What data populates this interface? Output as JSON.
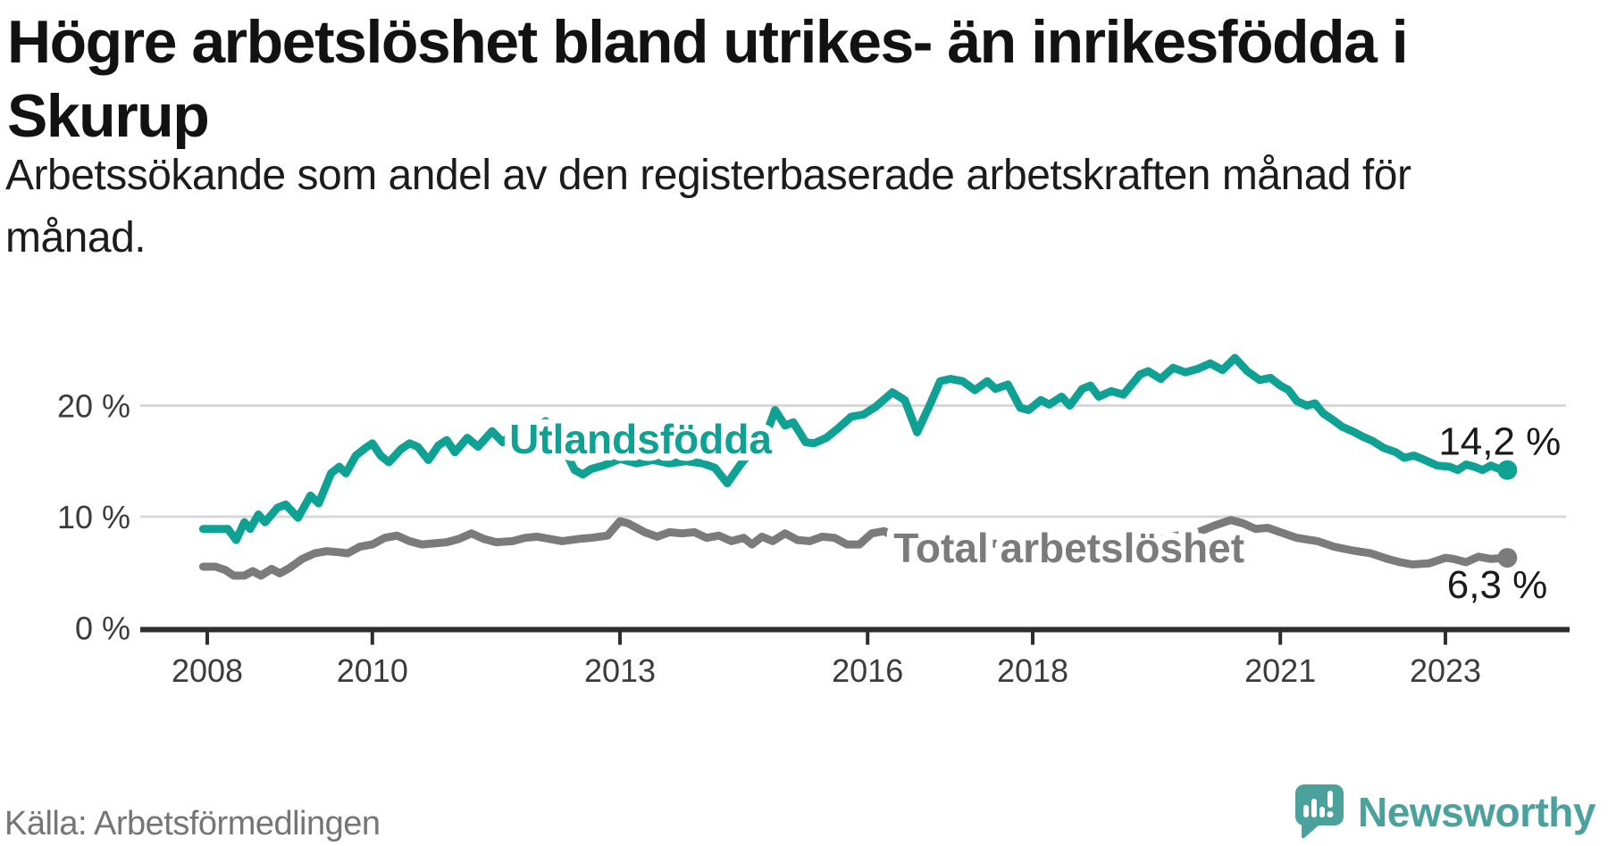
{
  "header": {
    "title_lines": [
      "Högre arbetslöshet bland utrikes- än inrikesfödda i",
      "Skurup"
    ],
    "subtitle": "Arbetssökande som andel av den registerbaserade arbetskraften månad för månad."
  },
  "footer": {
    "source": "Källa: Arbetsförmedlingen",
    "brand": "Newsworthy"
  },
  "colors": {
    "accent_teal": "#0fa294",
    "line_gray": "#7b7b7b",
    "brand_teal": "#4ba19b",
    "text_dark": "#121212",
    "tick_text": "#3c3c3c",
    "gridline": "#d8d8d8",
    "axis": "#2e2e2e",
    "source_text": "#757575"
  },
  "chart_data": {
    "type": "line",
    "title": "Högre arbetslöshet bland utrikes- än inrikesfödda i Skurup",
    "subtitle": "Arbetssökande som andel av den registerbaserade arbetskraften månad för månad.",
    "xlabel": "",
    "ylabel": "",
    "grid": true,
    "legend_position": "on-line-labels",
    "x_axis": {
      "ticks": [
        2008,
        2010,
        2013,
        2016,
        2018,
        2021,
        2023
      ],
      "range": [
        2007.5,
        2024.5
      ]
    },
    "y_axis": {
      "ticks": [
        {
          "value": 20,
          "label": "20 %"
        },
        {
          "value": 10,
          "label": "10 %"
        },
        {
          "value": 0,
          "label": "0 %"
        }
      ],
      "range": [
        0,
        26
      ]
    },
    "series": [
      {
        "name": "Utlandsfödda",
        "color": "#0fa294",
        "end_label": "14,2 %",
        "last_value": 14.2,
        "label_anchor": {
          "year": 2013.25,
          "value": 15.7
        },
        "points": [
          [
            2007.95,
            8.9
          ],
          [
            2008.1,
            8.9
          ],
          [
            2008.25,
            8.9
          ],
          [
            2008.35,
            7.9
          ],
          [
            2008.45,
            9.5
          ],
          [
            2008.52,
            8.9
          ],
          [
            2008.62,
            10.2
          ],
          [
            2008.7,
            9.5
          ],
          [
            2008.85,
            10.8
          ],
          [
            2008.95,
            11.1
          ],
          [
            2009.1,
            9.9
          ],
          [
            2009.25,
            11.9
          ],
          [
            2009.35,
            11.2
          ],
          [
            2009.5,
            13.9
          ],
          [
            2009.6,
            14.5
          ],
          [
            2009.68,
            13.9
          ],
          [
            2009.8,
            15.5
          ],
          [
            2009.92,
            16.2
          ],
          [
            2010.0,
            16.6
          ],
          [
            2010.1,
            15.5
          ],
          [
            2010.2,
            14.9
          ],
          [
            2010.35,
            16.1
          ],
          [
            2010.45,
            16.6
          ],
          [
            2010.55,
            16.3
          ],
          [
            2010.68,
            15.1
          ],
          [
            2010.8,
            16.4
          ],
          [
            2010.9,
            16.9
          ],
          [
            2011.0,
            15.8
          ],
          [
            2011.15,
            17.1
          ],
          [
            2011.28,
            16.3
          ],
          [
            2011.45,
            17.7
          ],
          [
            2011.58,
            16.7
          ],
          [
            2011.8,
            18.2
          ],
          [
            2011.9,
            17.4
          ],
          [
            2012.1,
            18.6
          ],
          [
            2012.3,
            16.5
          ],
          [
            2012.45,
            14.2
          ],
          [
            2012.55,
            13.8
          ],
          [
            2012.65,
            14.3
          ],
          [
            2012.8,
            14.6
          ],
          [
            2013.0,
            15.2
          ],
          [
            2013.2,
            14.8
          ],
          [
            2013.4,
            15.1
          ],
          [
            2013.6,
            14.8
          ],
          [
            2013.8,
            15.0
          ],
          [
            2014.0,
            14.8
          ],
          [
            2014.15,
            14.4
          ],
          [
            2014.3,
            13.0
          ],
          [
            2014.45,
            14.6
          ],
          [
            2014.6,
            16.0
          ],
          [
            2014.75,
            17.0
          ],
          [
            2014.88,
            19.6
          ],
          [
            2015.0,
            18.2
          ],
          [
            2015.1,
            18.5
          ],
          [
            2015.25,
            16.7
          ],
          [
            2015.35,
            16.6
          ],
          [
            2015.5,
            17.1
          ],
          [
            2015.65,
            18.0
          ],
          [
            2015.8,
            19.0
          ],
          [
            2015.95,
            19.2
          ],
          [
            2016.1,
            19.9
          ],
          [
            2016.3,
            21.2
          ],
          [
            2016.45,
            20.5
          ],
          [
            2016.6,
            17.6
          ],
          [
            2016.75,
            20.0
          ],
          [
            2016.88,
            22.2
          ],
          [
            2017.0,
            22.4
          ],
          [
            2017.15,
            22.2
          ],
          [
            2017.3,
            21.4
          ],
          [
            2017.45,
            22.2
          ],
          [
            2017.55,
            21.5
          ],
          [
            2017.7,
            21.9
          ],
          [
            2017.85,
            19.8
          ],
          [
            2017.95,
            19.6
          ],
          [
            2018.1,
            20.5
          ],
          [
            2018.2,
            20.1
          ],
          [
            2018.35,
            20.8
          ],
          [
            2018.45,
            20.0
          ],
          [
            2018.6,
            21.5
          ],
          [
            2018.7,
            21.8
          ],
          [
            2018.8,
            20.8
          ],
          [
            2018.95,
            21.3
          ],
          [
            2019.1,
            21.0
          ],
          [
            2019.3,
            22.8
          ],
          [
            2019.4,
            23.1
          ],
          [
            2019.55,
            22.4
          ],
          [
            2019.7,
            23.4
          ],
          [
            2019.85,
            23.0
          ],
          [
            2020.0,
            23.3
          ],
          [
            2020.15,
            23.8
          ],
          [
            2020.3,
            23.2
          ],
          [
            2020.45,
            24.3
          ],
          [
            2020.6,
            23.1
          ],
          [
            2020.75,
            22.3
          ],
          [
            2020.88,
            22.5
          ],
          [
            2021.0,
            21.8
          ],
          [
            2021.1,
            21.4
          ],
          [
            2021.2,
            20.4
          ],
          [
            2021.32,
            20.0
          ],
          [
            2021.42,
            20.2
          ],
          [
            2021.52,
            19.3
          ],
          [
            2021.62,
            18.8
          ],
          [
            2021.75,
            18.1
          ],
          [
            2021.9,
            17.6
          ],
          [
            2022.0,
            17.2
          ],
          [
            2022.12,
            16.8
          ],
          [
            2022.25,
            16.2
          ],
          [
            2022.4,
            15.8
          ],
          [
            2022.5,
            15.3
          ],
          [
            2022.62,
            15.5
          ],
          [
            2022.75,
            15.1
          ],
          [
            2022.9,
            14.6
          ],
          [
            2023.05,
            14.5
          ],
          [
            2023.15,
            14.2
          ],
          [
            2023.25,
            14.7
          ],
          [
            2023.35,
            14.5
          ],
          [
            2023.45,
            14.2
          ],
          [
            2023.55,
            14.6
          ],
          [
            2023.65,
            14.3
          ],
          [
            2023.75,
            14.2
          ]
        ]
      },
      {
        "name": "Total arbetslöshet",
        "color": "#7b7b7b",
        "end_label": "6,3 %",
        "last_value": 6.3,
        "label_anchor": {
          "year": 2018.44,
          "value": 5.9
        },
        "points": [
          [
            2007.95,
            5.5
          ],
          [
            2008.1,
            5.5
          ],
          [
            2008.22,
            5.2
          ],
          [
            2008.32,
            4.7
          ],
          [
            2008.45,
            4.7
          ],
          [
            2008.55,
            5.1
          ],
          [
            2008.65,
            4.7
          ],
          [
            2008.78,
            5.3
          ],
          [
            2008.88,
            4.9
          ],
          [
            2009.0,
            5.4
          ],
          [
            2009.15,
            6.2
          ],
          [
            2009.3,
            6.7
          ],
          [
            2009.45,
            6.9
          ],
          [
            2009.6,
            6.8
          ],
          [
            2009.7,
            6.7
          ],
          [
            2009.85,
            7.3
          ],
          [
            2010.0,
            7.5
          ],
          [
            2010.15,
            8.1
          ],
          [
            2010.3,
            8.3
          ],
          [
            2010.45,
            7.8
          ],
          [
            2010.6,
            7.5
          ],
          [
            2010.75,
            7.6
          ],
          [
            2010.9,
            7.7
          ],
          [
            2011.05,
            8.0
          ],
          [
            2011.2,
            8.5
          ],
          [
            2011.35,
            8.0
          ],
          [
            2011.5,
            7.7
          ],
          [
            2011.7,
            7.8
          ],
          [
            2011.85,
            8.1
          ],
          [
            2012.0,
            8.2
          ],
          [
            2012.15,
            8.0
          ],
          [
            2012.3,
            7.8
          ],
          [
            2012.5,
            8.0
          ],
          [
            2012.65,
            8.1
          ],
          [
            2012.85,
            8.3
          ],
          [
            2013.0,
            9.6
          ],
          [
            2013.1,
            9.4
          ],
          [
            2013.3,
            8.6
          ],
          [
            2013.45,
            8.2
          ],
          [
            2013.6,
            8.6
          ],
          [
            2013.75,
            8.5
          ],
          [
            2013.9,
            8.6
          ],
          [
            2014.05,
            8.1
          ],
          [
            2014.2,
            8.3
          ],
          [
            2014.35,
            7.8
          ],
          [
            2014.5,
            8.1
          ],
          [
            2014.6,
            7.5
          ],
          [
            2014.72,
            8.2
          ],
          [
            2014.85,
            7.8
          ],
          [
            2015.0,
            8.5
          ],
          [
            2015.15,
            7.9
          ],
          [
            2015.3,
            7.8
          ],
          [
            2015.45,
            8.2
          ],
          [
            2015.6,
            8.1
          ],
          [
            2015.75,
            7.5
          ],
          [
            2015.9,
            7.5
          ],
          [
            2016.05,
            8.5
          ],
          [
            2016.2,
            8.7
          ],
          [
            2016.35,
            8.1
          ],
          [
            2016.5,
            7.8
          ],
          [
            2016.65,
            8.1
          ],
          [
            2016.8,
            8.0
          ],
          [
            2017.0,
            8.0
          ],
          [
            2017.25,
            7.8
          ],
          [
            2017.5,
            7.6
          ],
          [
            2017.75,
            7.4
          ],
          [
            2018.0,
            7.3
          ],
          [
            2018.25,
            7.2
          ],
          [
            2018.5,
            7.3
          ],
          [
            2018.75,
            7.3
          ],
          [
            2019.0,
            7.4
          ],
          [
            2019.25,
            7.6
          ],
          [
            2019.5,
            7.9
          ],
          [
            2019.75,
            8.3
          ],
          [
            2020.0,
            8.6
          ],
          [
            2020.2,
            9.2
          ],
          [
            2020.4,
            9.7
          ],
          [
            2020.55,
            9.4
          ],
          [
            2020.7,
            8.9
          ],
          [
            2020.85,
            9.0
          ],
          [
            2021.0,
            8.6
          ],
          [
            2021.2,
            8.1
          ],
          [
            2021.45,
            7.8
          ],
          [
            2021.65,
            7.3
          ],
          [
            2021.85,
            7.0
          ],
          [
            2022.1,
            6.7
          ],
          [
            2022.3,
            6.2
          ],
          [
            2022.45,
            5.9
          ],
          [
            2022.6,
            5.7
          ],
          [
            2022.8,
            5.8
          ],
          [
            2023.0,
            6.3
          ],
          [
            2023.1,
            6.2
          ],
          [
            2023.25,
            5.9
          ],
          [
            2023.4,
            6.4
          ],
          [
            2023.55,
            6.2
          ],
          [
            2023.75,
            6.3
          ]
        ]
      }
    ]
  }
}
